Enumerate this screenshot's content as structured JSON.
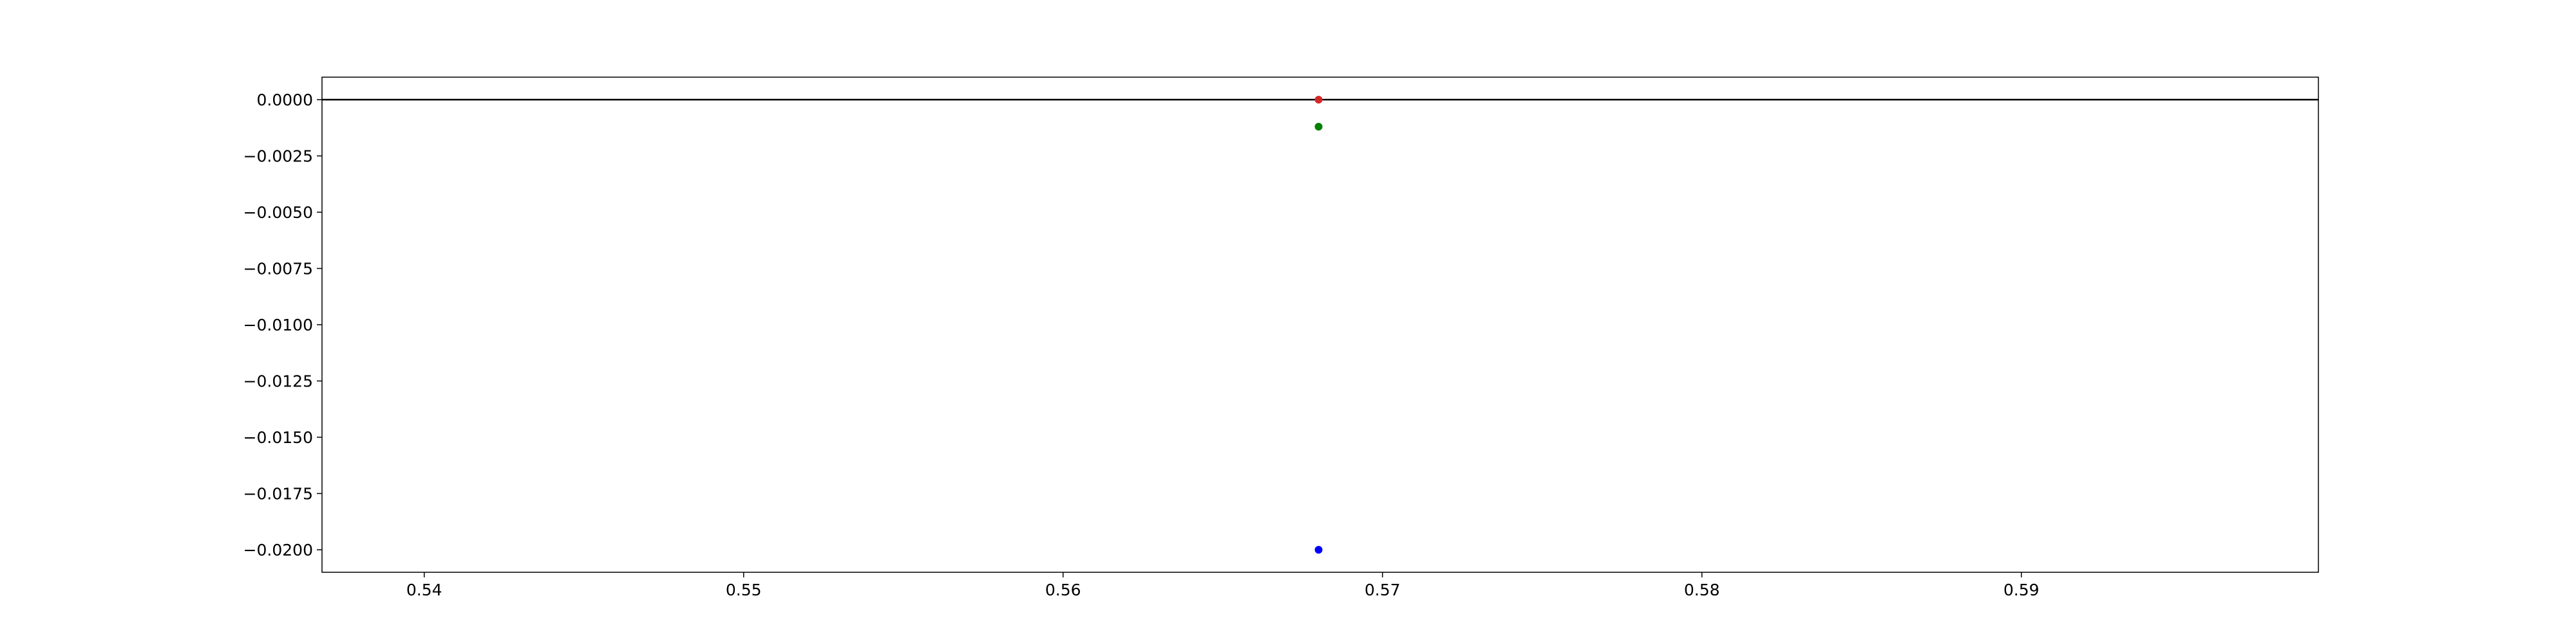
{
  "chart_data": {
    "type": "scatter",
    "title": "",
    "xlabel": "",
    "ylabel": "",
    "xlim": [
      0.5368,
      0.5993
    ],
    "ylim": [
      -0.021,
      0.001
    ],
    "grid": false,
    "x_ticks": [
      {
        "value": 0.54,
        "label": "0.54"
      },
      {
        "value": 0.55,
        "label": "0.55"
      },
      {
        "value": 0.56,
        "label": "0.56"
      },
      {
        "value": 0.57,
        "label": "0.57"
      },
      {
        "value": 0.58,
        "label": "0.58"
      },
      {
        "value": 0.59,
        "label": "0.59"
      }
    ],
    "y_ticks": [
      {
        "value": 0.0,
        "label": "0.0000"
      },
      {
        "value": -0.0025,
        "label": "−0.0025"
      },
      {
        "value": -0.005,
        "label": "−0.0050"
      },
      {
        "value": -0.0075,
        "label": "−0.0075"
      },
      {
        "value": -0.01,
        "label": "−0.0100"
      },
      {
        "value": -0.0125,
        "label": "−0.0125"
      },
      {
        "value": -0.015,
        "label": "−0.0150"
      },
      {
        "value": -0.0175,
        "label": "−0.0175"
      },
      {
        "value": -0.02,
        "label": "−0.0200"
      }
    ],
    "reference_lines": [
      {
        "orientation": "horizontal",
        "y": 0.0,
        "color": "#000000"
      }
    ],
    "series": [
      {
        "color": "#d62728",
        "points": [
          {
            "x": 0.568,
            "y": 0.0
          }
        ]
      },
      {
        "color": "#008000",
        "points": [
          {
            "x": 0.568,
            "y": -0.0012
          }
        ]
      },
      {
        "color": "#0000ff",
        "points": [
          {
            "x": 0.568,
            "y": -0.02
          }
        ]
      }
    ]
  }
}
